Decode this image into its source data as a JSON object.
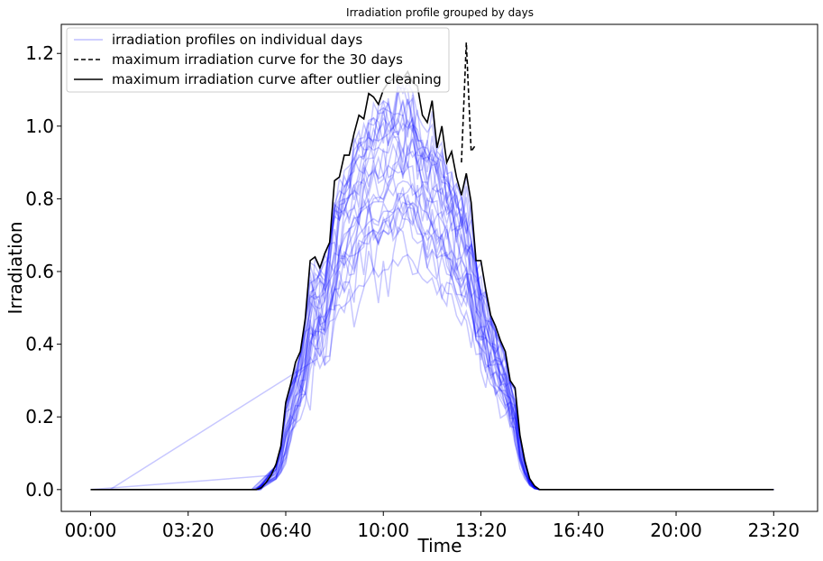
{
  "chart_data": {
    "type": "line",
    "title": "Irradiation profile grouped by days",
    "xlabel": "Time",
    "ylabel": "Irradiation",
    "xlim_minutes": [
      -60,
      1490
    ],
    "ylim": [
      -0.06,
      1.28
    ],
    "x_ticks": [
      {
        "label": "00:00",
        "minutes": 0
      },
      {
        "label": "03:20",
        "minutes": 200
      },
      {
        "label": "06:40",
        "minutes": 400
      },
      {
        "label": "10:00",
        "minutes": 600
      },
      {
        "label": "13:20",
        "minutes": 800
      },
      {
        "label": "16:40",
        "minutes": 1000
      },
      {
        "label": "20:00",
        "minutes": 1200
      },
      {
        "label": "23:20",
        "minutes": 1400
      }
    ],
    "y_ticks": [
      0.0,
      0.2,
      0.4,
      0.6,
      0.8,
      1.0,
      1.2
    ],
    "y_tick_labels": [
      "0.0",
      "0.2",
      "0.4",
      "0.6",
      "0.8",
      "1.0",
      "1.2"
    ],
    "grid": false,
    "legend_position": "top-left",
    "legend": [
      {
        "label": "irradiation profiles on individual days",
        "style": "thin translucent blue solid"
      },
      {
        "label": "maximum irradiation curve for the 30 days",
        "style": "black dashed"
      },
      {
        "label": "maximum irradiation curve after outlier cleaning",
        "style": "black solid"
      }
    ],
    "colors": {
      "daily": "#0000ff",
      "max": "#000000"
    },
    "daily_profile_count": 30,
    "series": [
      {
        "name": "maximum irradiation curve after outlier cleaning",
        "time_minutes": [
          0,
          330,
          340,
          350,
          360,
          370,
          380,
          390,
          400,
          410,
          420,
          430,
          440,
          450,
          460,
          470,
          480,
          490,
          500,
          510,
          520,
          530,
          540,
          550,
          560,
          570,
          580,
          590,
          600,
          610,
          620,
          630,
          640,
          650,
          660,
          670,
          680,
          690,
          700,
          710,
          720,
          730,
          740,
          750,
          760,
          770,
          780,
          790,
          800,
          810,
          820,
          830,
          840,
          850,
          860,
          870,
          880,
          890,
          900,
          910,
          920,
          930,
          940,
          950,
          960,
          970,
          980,
          990,
          1000,
          1010,
          1020,
          1030,
          1040,
          1050,
          1060,
          1070,
          1080,
          1090,
          1100,
          1110,
          1120,
          1400
        ],
        "values": [
          0,
          0,
          0,
          0.005,
          0.02,
          0.04,
          0.07,
          0.12,
          0.24,
          0.29,
          0.35,
          0.38,
          0.47,
          0.63,
          0.64,
          0.61,
          0.65,
          0.68,
          0.85,
          0.86,
          0.92,
          0.92,
          0.98,
          1.03,
          1.02,
          1.09,
          1.08,
          1.06,
          1.1,
          1.12,
          1.13,
          1.14,
          1.13,
          1.15,
          1.12,
          1.11,
          1.03,
          1.01,
          1.07,
          0.94,
          1.0,
          0.9,
          0.93,
          0.86,
          0.81,
          0.87,
          0.79,
          0.63,
          0.63,
          0.55,
          0.48,
          0.45,
          0.41,
          0.38,
          0.3,
          0.28,
          0.15,
          0.08,
          0.03,
          0.01,
          0.0,
          0,
          0,
          0,
          0,
          0,
          0,
          0,
          0,
          0,
          0,
          0,
          0,
          0,
          0,
          0,
          0,
          0,
          0,
          0,
          0,
          0
        ]
      },
      {
        "name": "maximum irradiation curve for the 30 days",
        "time_minutes": [
          760,
          770,
          780,
          790
        ],
        "values": [
          0.9,
          1.23,
          0.93,
          0.95
        ]
      }
    ]
  }
}
